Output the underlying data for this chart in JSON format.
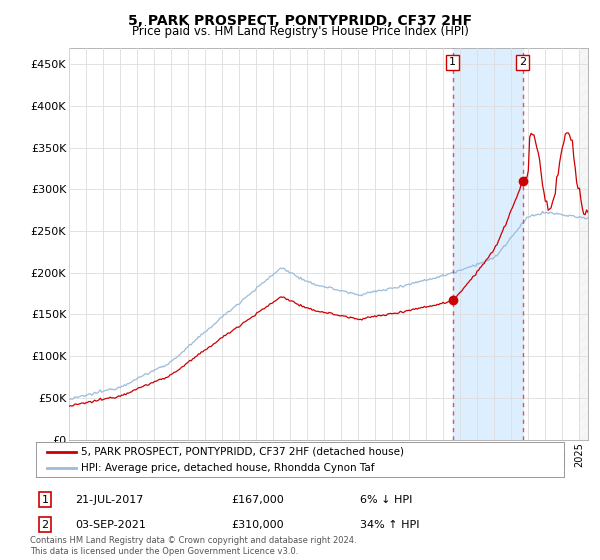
{
  "title": "5, PARK PROSPECT, PONTYPRIDD, CF37 2HF",
  "subtitle": "Price paid vs. HM Land Registry's House Price Index (HPI)",
  "ylabel_ticks": [
    "£0",
    "£50K",
    "£100K",
    "£150K",
    "£200K",
    "£250K",
    "£300K",
    "£350K",
    "£400K",
    "£450K"
  ],
  "ytick_values": [
    0,
    50000,
    100000,
    150000,
    200000,
    250000,
    300000,
    350000,
    400000,
    450000
  ],
  "ylim": [
    0,
    470000
  ],
  "xlim_start": 1995.0,
  "xlim_end": 2025.5,
  "hpi_color": "#9bbcda",
  "price_color": "#cc0000",
  "shade_color": "#ddeeff",
  "marker1_x": 2017.55,
  "marker1_y": 167000,
  "marker2_x": 2021.67,
  "marker2_y": 310000,
  "vline1_x": 2017.55,
  "vline2_x": 2021.67,
  "legend_price": "5, PARK PROSPECT, PONTYPRIDD, CF37 2HF (detached house)",
  "legend_hpi": "HPI: Average price, detached house, Rhondda Cynon Taf",
  "annot1_box": "1",
  "annot1_date": "21-JUL-2017",
  "annot1_price": "£167,000",
  "annot1_hpi": "6% ↓ HPI",
  "annot2_box": "2",
  "annot2_date": "03-SEP-2021",
  "annot2_price": "£310,000",
  "annot2_hpi": "34% ↑ HPI",
  "footnote": "Contains HM Land Registry data © Crown copyright and database right 2024.\nThis data is licensed under the Open Government Licence v3.0.",
  "background_color": "#ffffff",
  "grid_color": "#dddddd"
}
